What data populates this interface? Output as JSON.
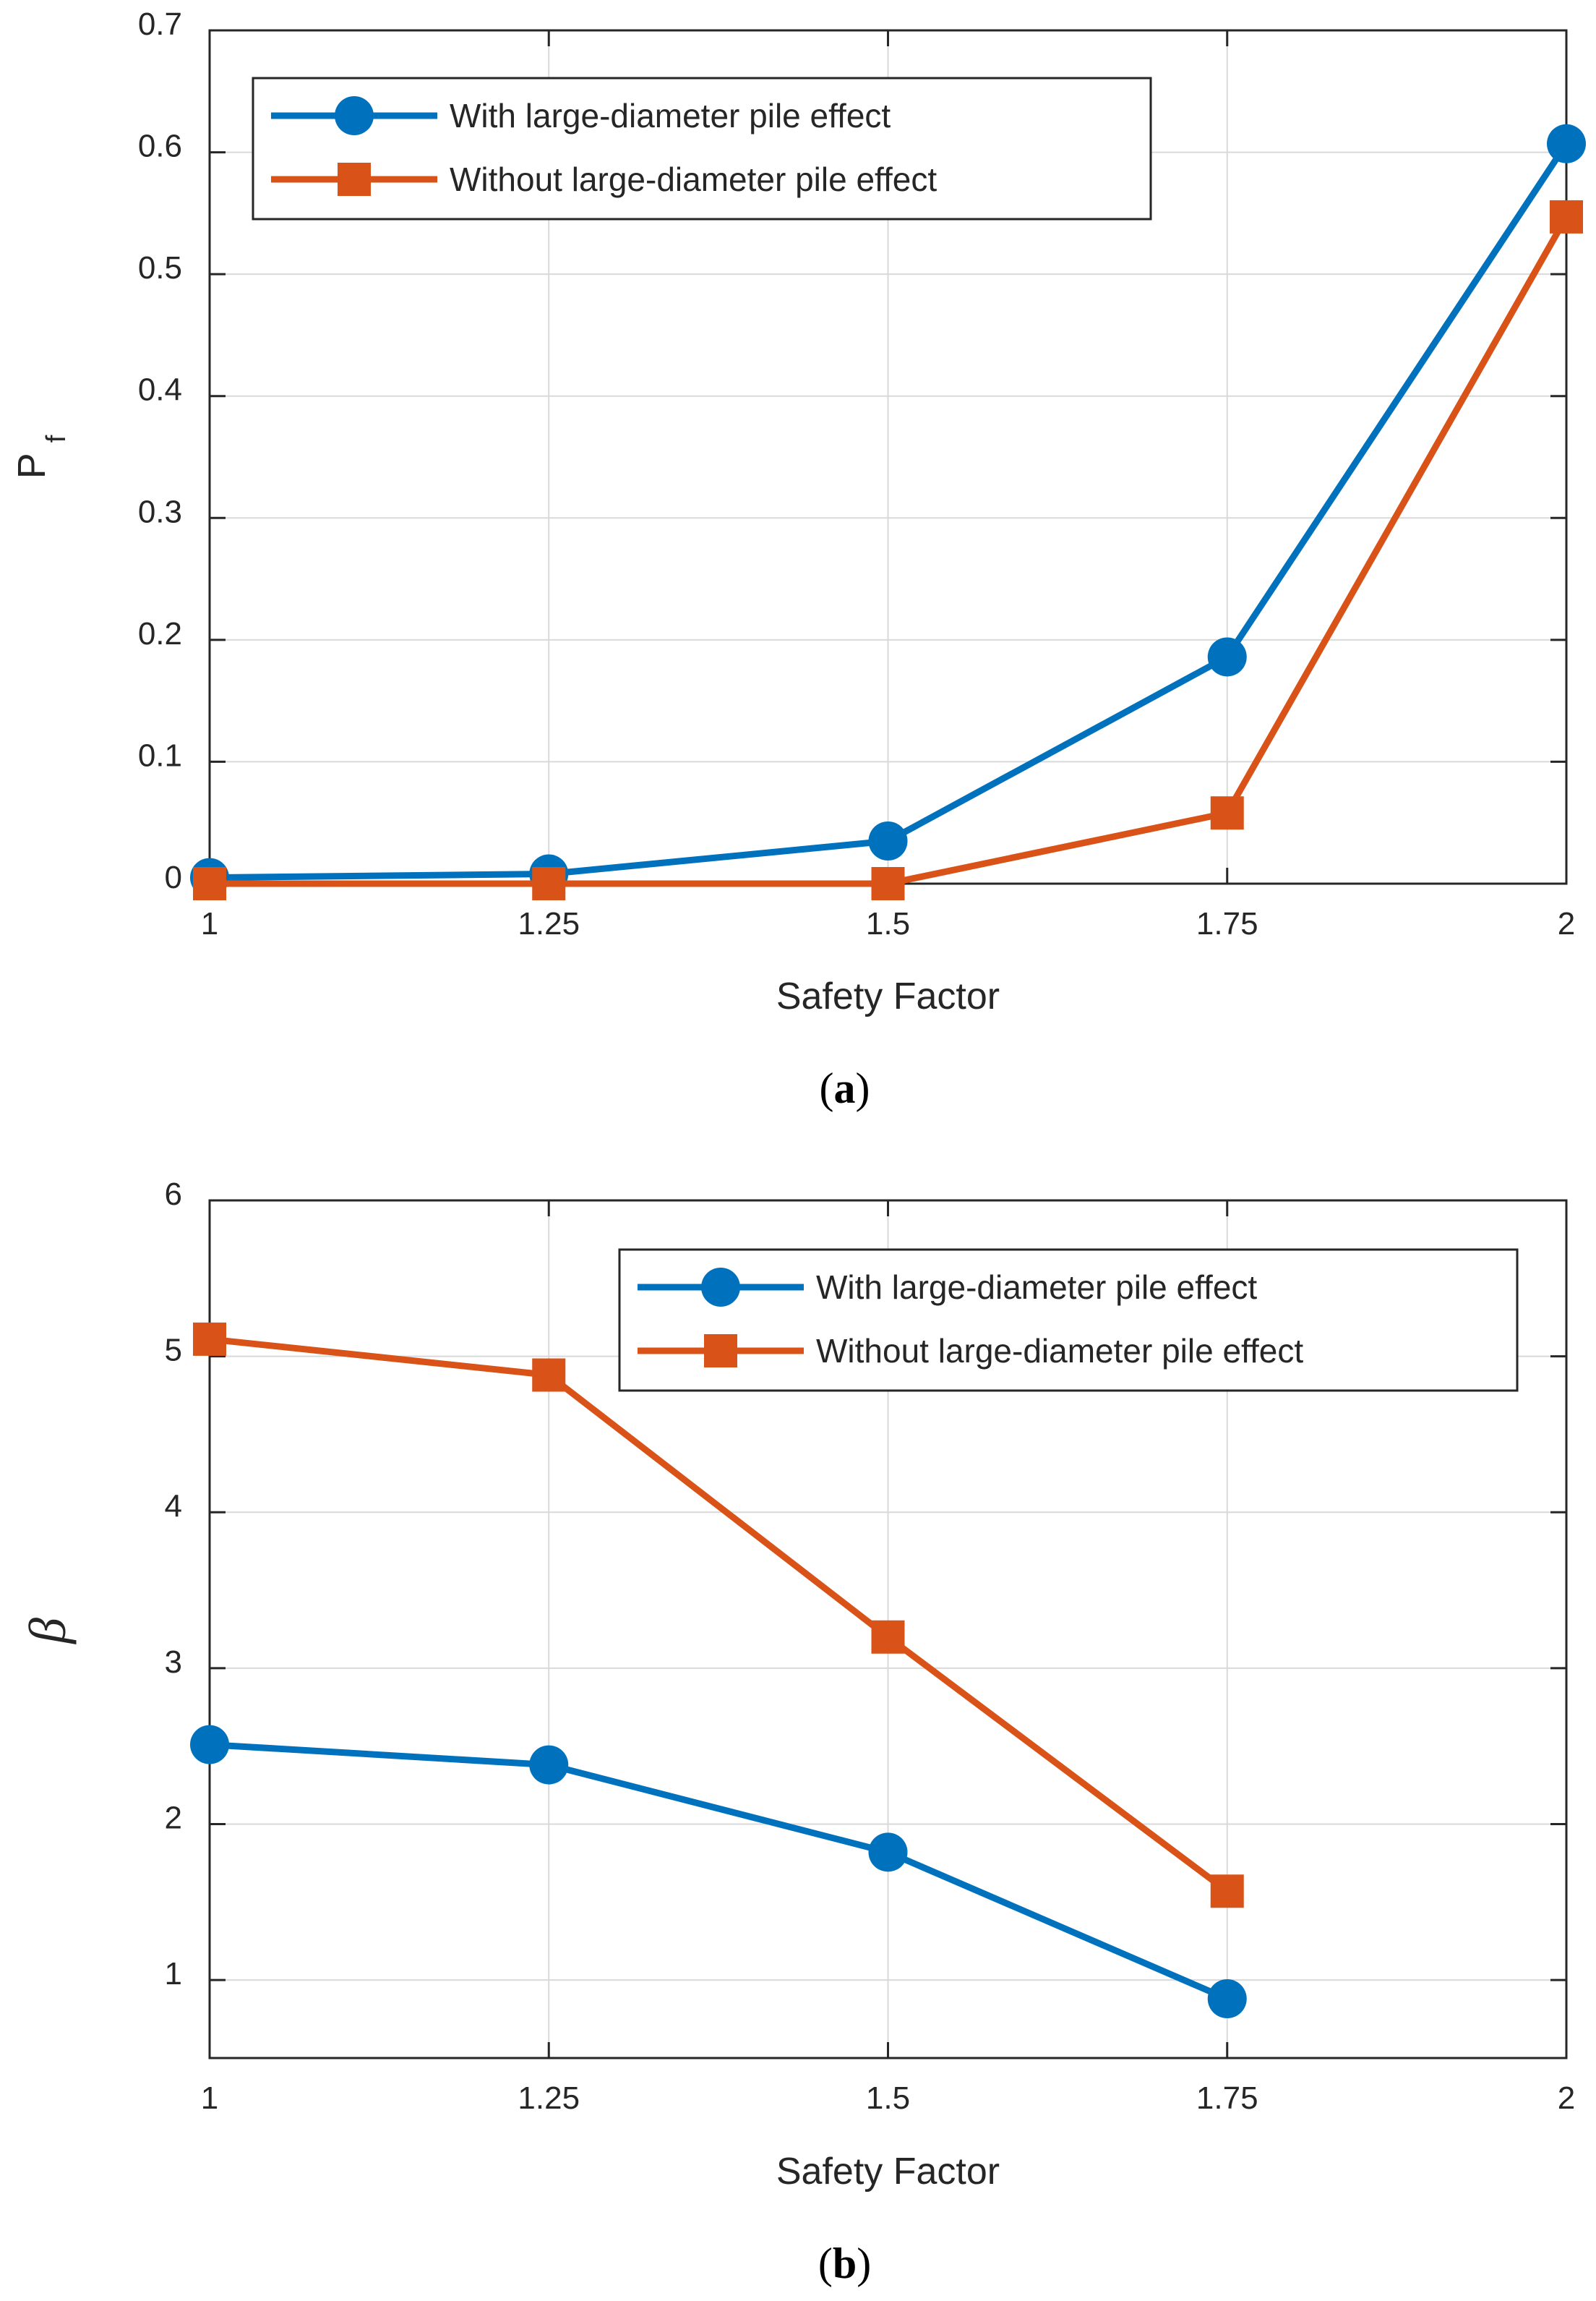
{
  "colors": {
    "series_with": "#0072BD",
    "series_without": "#D95319"
  },
  "chart_data": [
    {
      "type": "line",
      "panel_label_open": "(",
      "panel_label_letter": "a",
      "panel_label_close": ")",
      "title": "",
      "xlabel": "Safety Factor",
      "ylabel": "P",
      "ylabel_sub": "f",
      "xlim": [
        1,
        2
      ],
      "ylim": [
        0,
        0.7
      ],
      "x_ticks": [
        1,
        1.25,
        1.5,
        1.75,
        2
      ],
      "x_tick_labels": [
        "1",
        "1.25",
        "1.5",
        "1.75",
        "2"
      ],
      "y_ticks": [
        0,
        0.1,
        0.2,
        0.3,
        0.4,
        0.5,
        0.6,
        0.7
      ],
      "y_tick_labels": [
        "0",
        "0.1",
        "0.2",
        "0.3",
        "0.4",
        "0.5",
        "0.6",
        "0.7"
      ],
      "grid": true,
      "legend_position": "top-left",
      "series": [
        {
          "name": "With large-diameter pile effect",
          "marker": "circle",
          "color_key": "series_with",
          "x": [
            1,
            1.25,
            1.5,
            1.75,
            2
          ],
          "y": [
            0.005,
            0.008,
            0.035,
            0.186,
            0.607
          ]
        },
        {
          "name": "Without large-diameter pile effect",
          "marker": "square",
          "color_key": "series_without",
          "x": [
            1,
            1.25,
            1.5,
            1.75,
            2
          ],
          "y": [
            0.0,
            0.0,
            0.0,
            0.058,
            0.547
          ]
        }
      ]
    },
    {
      "type": "line",
      "panel_label_open": "(",
      "panel_label_letter": "b",
      "panel_label_close": ")",
      "title": "",
      "xlabel": "Safety Factor",
      "ylabel": "β",
      "xlim": [
        1,
        2
      ],
      "ylim": [
        0.5,
        6
      ],
      "x_ticks": [
        1,
        1.25,
        1.5,
        1.75,
        2
      ],
      "x_tick_labels": [
        "1",
        "1.25",
        "1.5",
        "1.75",
        "2"
      ],
      "y_ticks": [
        1,
        2,
        3,
        4,
        5,
        6
      ],
      "y_tick_labels": [
        "1",
        "2",
        "3",
        "4",
        "5",
        "6"
      ],
      "grid": true,
      "legend_position": "top-right",
      "series": [
        {
          "name": "With large-diameter pile effect",
          "marker": "circle",
          "color_key": "series_with",
          "x": [
            1,
            1.25,
            1.5,
            1.75
          ],
          "y": [
            2.51,
            2.38,
            1.82,
            0.88
          ]
        },
        {
          "name": "Without large-diameter pile effect",
          "marker": "square",
          "color_key": "series_without",
          "x": [
            1,
            1.25,
            1.5,
            1.75
          ],
          "y": [
            5.11,
            4.88,
            3.2,
            1.57
          ]
        }
      ]
    }
  ]
}
